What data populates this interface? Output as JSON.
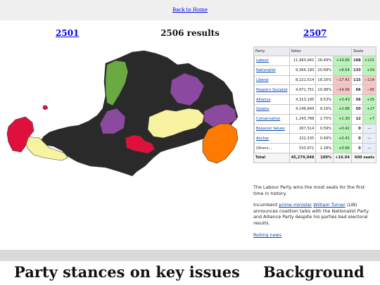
{
  "header": {
    "back_label": "Back to Home"
  },
  "nav": {
    "prev": "2501",
    "title": "2506 results",
    "next": "2507"
  },
  "map": {
    "colors": {
      "labour": "#8b4aa0",
      "nationalist": "#2a2a2a",
      "liberal": "#f8f3a0",
      "peoples_socialist": "#e0103c",
      "alliance": "#ff7a00",
      "greens": "#6aaa40"
    }
  },
  "table": {
    "headers": {
      "party": "Party",
      "votes": "Votes",
      "seats": "Seats"
    },
    "rows": [
      {
        "color": "#8b4aa0",
        "party": "Labour",
        "votes": "11,993,941",
        "pct": "26.49%",
        "change": "+14.66",
        "seats": "168",
        "seat_change": "+101",
        "dir": "up"
      },
      {
        "color": "#2a2a2a",
        "party": "Nationalist",
        "votes": "9,364,190",
        "pct": "20.68%",
        "change": "+8.64",
        "seats": "133",
        "seat_change": "+59",
        "dir": "up"
      },
      {
        "color": "#f8f3a0",
        "party": "Liberal",
        "votes": "8,221,514",
        "pct": "18.16%",
        "change": "−17.41",
        "seats": "115",
        "seat_change": "−114",
        "dir": "down"
      },
      {
        "color": "#e0103c",
        "party": "People's Socialist",
        "votes": "4,971,751",
        "pct": "10.98%",
        "change": "−14.96",
        "seats": "66",
        "seat_change": "−95",
        "dir": "down"
      },
      {
        "color": "#ff7a00",
        "party": "Alliance",
        "votes": "4,313,195",
        "pct": "9.53%",
        "change": "+3.43",
        "seats": "56",
        "seat_change": "+25",
        "dir": "up"
      },
      {
        "color": "#6aaa40",
        "party": "Greens",
        "votes": "4,146,849",
        "pct": "9.16%",
        "change": "+2.86",
        "seats": "50",
        "seat_change": "+17",
        "dir": "up"
      },
      {
        "color": "#2a80c8",
        "party": "Conservative",
        "votes": "1,243,788",
        "pct": "2.75%",
        "change": "+1.30",
        "seats": "12",
        "seat_change": "+7",
        "dir": "up"
      },
      {
        "color": "#7a2a6a",
        "party": "Bokanist Values",
        "votes": "267,514",
        "pct": "0.59%",
        "change": "+0.42",
        "seats": "0",
        "seat_change": "—",
        "dir": "flat"
      },
      {
        "color": "#8a1020",
        "party": "Anchor",
        "votes": "222,335",
        "pct": "0.49%",
        "change": "+0.41",
        "seats": "0",
        "seat_change": "—",
        "dir": "flat"
      },
      {
        "color": "#c8c8c8",
        "party": "Others...",
        "votes": "533,971",
        "pct": "1.18%",
        "change": "+0.66",
        "seats": "0",
        "seat_change": "—",
        "dir": "flat"
      }
    ],
    "total": {
      "label": "Total",
      "votes": "45,279,048",
      "pct": "100%",
      "change": "+16.04",
      "seats": "600 seats"
    }
  },
  "caption": {
    "p1": "The Labour Party wins the most seats for the first time in history.",
    "p2_prefix": "Incumbent ",
    "p2_link1": "prime minister",
    "p2_link2": "William Turner",
    "p2_suffix": " (LIB) announces coalition talks with the Nationalist Party and Alliance Party despite his parties bad electoral results.",
    "rolling": "Rolling news"
  },
  "sections": {
    "left": "Party stances on key issues",
    "right": "Background"
  }
}
